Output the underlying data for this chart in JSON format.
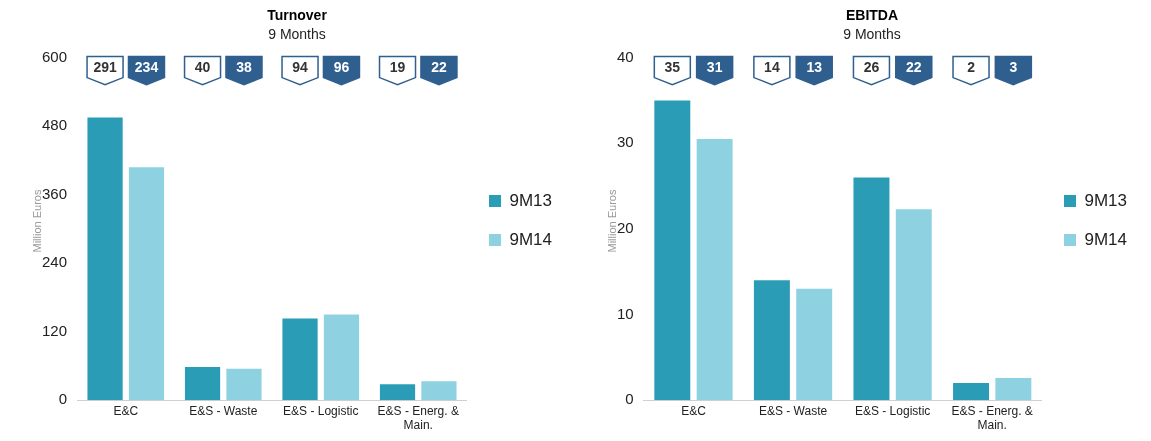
{
  "chart_data": [
    {
      "type": "bar",
      "title": "Turnover",
      "subtitle": "9 Months",
      "ylabel": "Million Euros",
      "categories": [
        "E&C",
        "E&S - Waste",
        "E&S - Logistic",
        "E&S - Energ. & Main."
      ],
      "series": [
        {
          "name": "9M13",
          "color": "#2b9cb6",
          "values": [
            495,
            58,
            143,
            28
          ]
        },
        {
          "name": "9M14",
          "color": "#8ed2e2",
          "values": [
            408,
            55,
            150,
            33
          ]
        }
      ],
      "ylim": [
        0,
        600
      ],
      "yticks": [
        0,
        120,
        240,
        360,
        480,
        600
      ],
      "grid": false,
      "legend": "right",
      "annotations": [
        "291",
        "234",
        "40",
        "38",
        "94",
        "96",
        "19",
        "22"
      ]
    },
    {
      "type": "bar",
      "title": "EBITDA",
      "subtitle": "9 Months",
      "ylabel": "Million Euros",
      "categories": [
        "E&C",
        "E&S - Waste",
        "E&S - Logistic",
        "E&S - Energ. & Main."
      ],
      "series": [
        {
          "name": "9M13",
          "color": "#2b9cb6",
          "values": [
            35,
            14,
            26,
            2
          ]
        },
        {
          "name": "9M14",
          "color": "#8ed2e2",
          "values": [
            30.5,
            13,
            22.3,
            2.6
          ]
        }
      ],
      "ylim": [
        0,
        40
      ],
      "yticks": [
        0,
        10,
        20,
        30,
        40
      ],
      "grid": false,
      "legend": "right",
      "annotations": [
        "35",
        "31",
        "14",
        "13",
        "26",
        "22",
        "2",
        "3"
      ]
    }
  ]
}
